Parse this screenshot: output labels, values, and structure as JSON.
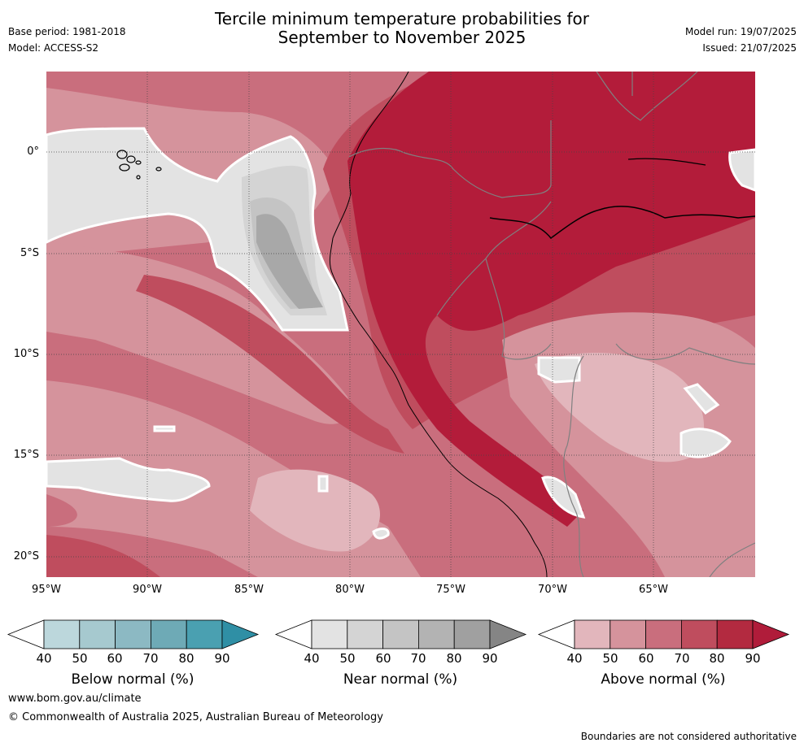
{
  "title_line1": "Tercile minimum temperature probabilities for",
  "title_line2": "September to November 2025",
  "meta_left": {
    "base_period": "Base period: 1981-2018",
    "model": "Model: ACCESS-S2"
  },
  "meta_right": {
    "model_run": "Model run: 19/07/2025",
    "issued": "Issued: 21/07/2025"
  },
  "lat_labels": [
    "0°",
    "5°S",
    "10°S",
    "15°S",
    "20°S"
  ],
  "lon_labels": [
    "95°W",
    "90°W",
    "85°W",
    "80°W",
    "75°W",
    "70°W",
    "65°W"
  ],
  "colorbars": {
    "below": {
      "title": "Below normal (%)",
      "ticks": [
        "40",
        "50",
        "60",
        "70",
        "80",
        "90"
      ],
      "colors": [
        "#ffffff",
        "#bcd7dc",
        "#a6c9cf",
        "#8cb9c3",
        "#6eaab6",
        "#4aa0b1",
        "#2f8fa5"
      ]
    },
    "near": {
      "title": "Near normal (%)",
      "ticks": [
        "40",
        "50",
        "60",
        "70",
        "80",
        "90"
      ],
      "colors": [
        "#ffffff",
        "#e3e3e3",
        "#d4d4d4",
        "#c4c4c4",
        "#b3b3b3",
        "#a0a0a0",
        "#858585"
      ]
    },
    "above": {
      "title": "Above normal (%)",
      "ticks": [
        "40",
        "50",
        "60",
        "70",
        "80",
        "90"
      ],
      "colors": [
        "#ffffff",
        "#e2b6bc",
        "#d5939c",
        "#c96e7d",
        "#bf4d5e",
        "#b32a40",
        "#b01c3a"
      ]
    }
  },
  "map_colors": {
    "above_50": "#e2b6bc",
    "above_60": "#d5939c",
    "above_70": "#c96e7d",
    "above_80": "#bf4d5e",
    "above_90": "#b31c3a",
    "near_40": "#e3e3e3",
    "near_50": "#d4d4d4",
    "near_60": "#c4c4c4",
    "near_70": "#a8a8a8"
  },
  "footer": {
    "url": "www.bom.gov.au/climate",
    "copyright": "© Commonwealth of Australia 2025, Australian Bureau of Meteorology",
    "disclaimer": "Boundaries are not considered authoritative"
  }
}
